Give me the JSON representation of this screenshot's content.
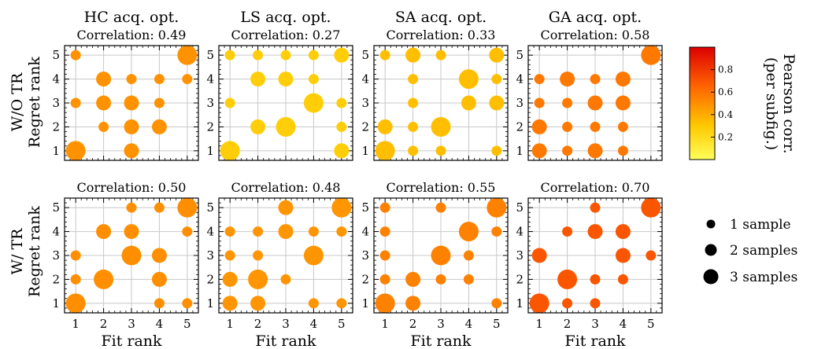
{
  "chart_data": [
    {
      "type": "scatter",
      "title": "HC acq. opt.",
      "correlation_label": "Correlation: 0.49",
      "correlation": 0.49,
      "ylabel": "Regret rank",
      "points": [
        {
          "x": 1,
          "y": 5,
          "n": 1
        },
        {
          "x": 5,
          "y": 5,
          "n": 3
        },
        {
          "x": 2,
          "y": 4,
          "n": 2
        },
        {
          "x": 3,
          "y": 4,
          "n": 1
        },
        {
          "x": 4,
          "y": 4,
          "n": 1
        },
        {
          "x": 5,
          "y": 4,
          "n": 1
        },
        {
          "x": 1,
          "y": 3,
          "n": 1
        },
        {
          "x": 2,
          "y": 3,
          "n": 2
        },
        {
          "x": 3,
          "y": 3,
          "n": 2
        },
        {
          "x": 4,
          "y": 3,
          "n": 1
        },
        {
          "x": 2,
          "y": 2,
          "n": 1
        },
        {
          "x": 3,
          "y": 2,
          "n": 2
        },
        {
          "x": 4,
          "y": 2,
          "n": 2
        },
        {
          "x": 1,
          "y": 1,
          "n": 3
        },
        {
          "x": 3,
          "y": 1,
          "n": 2
        }
      ]
    },
    {
      "type": "scatter",
      "title": "LS acq. opt.",
      "correlation_label": "Correlation: 0.27",
      "correlation": 0.27,
      "points": [
        {
          "x": 1,
          "y": 5,
          "n": 1
        },
        {
          "x": 2,
          "y": 5,
          "n": 1
        },
        {
          "x": 3,
          "y": 5,
          "n": 1
        },
        {
          "x": 4,
          "y": 5,
          "n": 1
        },
        {
          "x": 5,
          "y": 5,
          "n": 2
        },
        {
          "x": 2,
          "y": 4,
          "n": 2
        },
        {
          "x": 3,
          "y": 4,
          "n": 2
        },
        {
          "x": 4,
          "y": 4,
          "n": 1
        },
        {
          "x": 1,
          "y": 3,
          "n": 1
        },
        {
          "x": 4,
          "y": 3,
          "n": 3
        },
        {
          "x": 5,
          "y": 3,
          "n": 1
        },
        {
          "x": 2,
          "y": 2,
          "n": 2
        },
        {
          "x": 3,
          "y": 2,
          "n": 3
        },
        {
          "x": 5,
          "y": 2,
          "n": 1
        },
        {
          "x": 1,
          "y": 1,
          "n": 3
        },
        {
          "x": 5,
          "y": 1,
          "n": 2
        }
      ]
    },
    {
      "type": "scatter",
      "title": "SA acq. opt.",
      "correlation_label": "Correlation: 0.33",
      "correlation": 0.33,
      "points": [
        {
          "x": 1,
          "y": 5,
          "n": 1
        },
        {
          "x": 2,
          "y": 5,
          "n": 2
        },
        {
          "x": 3,
          "y": 5,
          "n": 1
        },
        {
          "x": 5,
          "y": 5,
          "n": 2
        },
        {
          "x": 2,
          "y": 4,
          "n": 1
        },
        {
          "x": 4,
          "y": 4,
          "n": 3
        },
        {
          "x": 5,
          "y": 4,
          "n": 1
        },
        {
          "x": 2,
          "y": 3,
          "n": 1
        },
        {
          "x": 4,
          "y": 3,
          "n": 2
        },
        {
          "x": 5,
          "y": 3,
          "n": 2
        },
        {
          "x": 1,
          "y": 2,
          "n": 2
        },
        {
          "x": 2,
          "y": 2,
          "n": 1
        },
        {
          "x": 3,
          "y": 2,
          "n": 3
        },
        {
          "x": 1,
          "y": 1,
          "n": 3
        },
        {
          "x": 2,
          "y": 1,
          "n": 1
        },
        {
          "x": 3,
          "y": 1,
          "n": 1
        },
        {
          "x": 5,
          "y": 1,
          "n": 1
        }
      ]
    },
    {
      "type": "scatter",
      "title": "GA acq. opt.",
      "correlation_label": "Correlation: 0.58",
      "correlation": 0.58,
      "points": [
        {
          "x": 5,
          "y": 5,
          "n": 3
        },
        {
          "x": 1,
          "y": 4,
          "n": 1
        },
        {
          "x": 2,
          "y": 4,
          "n": 2
        },
        {
          "x": 3,
          "y": 4,
          "n": 1
        },
        {
          "x": 4,
          "y": 4,
          "n": 2
        },
        {
          "x": 1,
          "y": 3,
          "n": 1
        },
        {
          "x": 2,
          "y": 3,
          "n": 1
        },
        {
          "x": 3,
          "y": 3,
          "n": 2
        },
        {
          "x": 4,
          "y": 3,
          "n": 2
        },
        {
          "x": 1,
          "y": 2,
          "n": 2
        },
        {
          "x": 2,
          "y": 2,
          "n": 1
        },
        {
          "x": 3,
          "y": 2,
          "n": 1
        },
        {
          "x": 4,
          "y": 2,
          "n": 1
        },
        {
          "x": 1,
          "y": 1,
          "n": 2
        },
        {
          "x": 2,
          "y": 1,
          "n": 1
        },
        {
          "x": 3,
          "y": 1,
          "n": 2
        },
        {
          "x": 4,
          "y": 1,
          "n": 1
        }
      ]
    },
    {
      "type": "scatter",
      "correlation_label": "Correlation: 0.50",
      "correlation": 0.5,
      "ylabel": "Regret rank",
      "xlabel": "Fit rank",
      "points": [
        {
          "x": 3,
          "y": 5,
          "n": 1
        },
        {
          "x": 4,
          "y": 5,
          "n": 1
        },
        {
          "x": 5,
          "y": 5,
          "n": 3
        },
        {
          "x": 2,
          "y": 4,
          "n": 2
        },
        {
          "x": 3,
          "y": 4,
          "n": 2
        },
        {
          "x": 5,
          "y": 4,
          "n": 1
        },
        {
          "x": 1,
          "y": 3,
          "n": 1
        },
        {
          "x": 3,
          "y": 3,
          "n": 3
        },
        {
          "x": 4,
          "y": 3,
          "n": 2
        },
        {
          "x": 1,
          "y": 2,
          "n": 1
        },
        {
          "x": 2,
          "y": 2,
          "n": 3
        },
        {
          "x": 4,
          "y": 2,
          "n": 2
        },
        {
          "x": 1,
          "y": 1,
          "n": 3
        },
        {
          "x": 4,
          "y": 1,
          "n": 1
        },
        {
          "x": 5,
          "y": 1,
          "n": 1
        }
      ]
    },
    {
      "type": "scatter",
      "correlation_label": "Correlation: 0.48",
      "correlation": 0.48,
      "xlabel": "Fit rank",
      "points": [
        {
          "x": 3,
          "y": 5,
          "n": 2
        },
        {
          "x": 5,
          "y": 5,
          "n": 3
        },
        {
          "x": 1,
          "y": 4,
          "n": 1
        },
        {
          "x": 2,
          "y": 4,
          "n": 1
        },
        {
          "x": 3,
          "y": 4,
          "n": 2
        },
        {
          "x": 4,
          "y": 4,
          "n": 1
        },
        {
          "x": 5,
          "y": 4,
          "n": 1
        },
        {
          "x": 1,
          "y": 3,
          "n": 1
        },
        {
          "x": 2,
          "y": 3,
          "n": 1
        },
        {
          "x": 4,
          "y": 3,
          "n": 3
        },
        {
          "x": 1,
          "y": 2,
          "n": 2
        },
        {
          "x": 2,
          "y": 2,
          "n": 3
        },
        {
          "x": 3,
          "y": 2,
          "n": 1
        },
        {
          "x": 1,
          "y": 1,
          "n": 2
        },
        {
          "x": 2,
          "y": 1,
          "n": 2
        },
        {
          "x": 4,
          "y": 1,
          "n": 1
        },
        {
          "x": 5,
          "y": 1,
          "n": 1
        }
      ]
    },
    {
      "type": "scatter",
      "correlation_label": "Correlation: 0.55",
      "correlation": 0.55,
      "xlabel": "Fit rank",
      "points": [
        {
          "x": 1,
          "y": 5,
          "n": 1
        },
        {
          "x": 3,
          "y": 5,
          "n": 1
        },
        {
          "x": 5,
          "y": 5,
          "n": 3
        },
        {
          "x": 1,
          "y": 4,
          "n": 1
        },
        {
          "x": 4,
          "y": 4,
          "n": 3
        },
        {
          "x": 5,
          "y": 4,
          "n": 1
        },
        {
          "x": 1,
          "y": 3,
          "n": 1
        },
        {
          "x": 3,
          "y": 3,
          "n": 3
        },
        {
          "x": 4,
          "y": 3,
          "n": 1
        },
        {
          "x": 1,
          "y": 2,
          "n": 1
        },
        {
          "x": 2,
          "y": 2,
          "n": 2
        },
        {
          "x": 3,
          "y": 2,
          "n": 1
        },
        {
          "x": 4,
          "y": 2,
          "n": 1
        },
        {
          "x": 1,
          "y": 1,
          "n": 3
        },
        {
          "x": 2,
          "y": 1,
          "n": 2
        },
        {
          "x": 5,
          "y": 1,
          "n": 1
        }
      ]
    },
    {
      "type": "scatter",
      "correlation_label": "Correlation: 0.70",
      "correlation": 0.7,
      "xlabel": "Fit rank",
      "points": [
        {
          "x": 3,
          "y": 5,
          "n": 1
        },
        {
          "x": 5,
          "y": 5,
          "n": 3
        },
        {
          "x": 2,
          "y": 4,
          "n": 1
        },
        {
          "x": 3,
          "y": 4,
          "n": 2
        },
        {
          "x": 4,
          "y": 4,
          "n": 2
        },
        {
          "x": 1,
          "y": 3,
          "n": 2
        },
        {
          "x": 4,
          "y": 3,
          "n": 2
        },
        {
          "x": 5,
          "y": 3,
          "n": 1
        },
        {
          "x": 2,
          "y": 2,
          "n": 3
        },
        {
          "x": 3,
          "y": 2,
          "n": 1
        },
        {
          "x": 4,
          "y": 2,
          "n": 1
        },
        {
          "x": 1,
          "y": 1,
          "n": 3
        },
        {
          "x": 2,
          "y": 1,
          "n": 1
        },
        {
          "x": 3,
          "y": 1,
          "n": 1
        }
      ]
    }
  ],
  "row_labels": [
    "W/O TR",
    "W/ TR"
  ],
  "xlabel": "Fit rank",
  "ylabel": "Regret rank",
  "ticks": [
    "1",
    "2",
    "3",
    "4",
    "5"
  ],
  "xlim": [
    0.6,
    5.4
  ],
  "ylim": [
    0.6,
    5.4
  ],
  "colorbar": {
    "label_line1": "Pearson corr.",
    "label_line2": "(per subfig.)",
    "ticks": [
      "0.2",
      "0.4",
      "0.6",
      "0.8"
    ],
    "tick_values": [
      0.2,
      0.4,
      0.6,
      0.8
    ],
    "range": [
      0.0,
      1.0
    ]
  },
  "legend": [
    {
      "label": "1 sample",
      "n": 1
    },
    {
      "label": "2 samples",
      "n": 2
    },
    {
      "label": "3 samples",
      "n": 3
    }
  ]
}
